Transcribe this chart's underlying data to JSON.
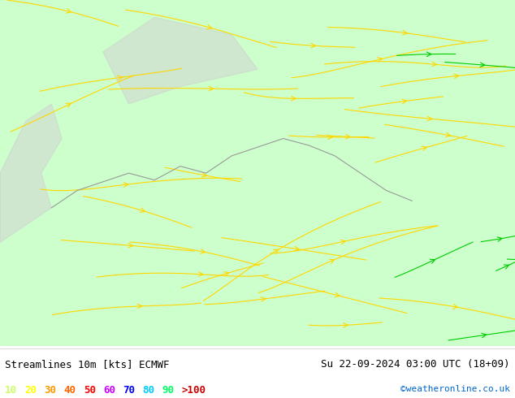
{
  "title_left": "Streamlines 10m [kts] ECMWF",
  "title_right": "Su 22-09-2024 03:00 UTC (18+09)",
  "credit": "©weatheronline.co.uk",
  "legend_values": [
    "10",
    "20",
    "30",
    "40",
    "50",
    "60",
    "70",
    "80",
    "90",
    ">100"
  ],
  "legend_colors": [
    "#ccff66",
    "#ffff00",
    "#ff9900",
    "#ff6600",
    "#ff0000",
    "#cc00ff",
    "#0000ff",
    "#00ccff",
    "#00ff66",
    "#cc0000"
  ],
  "bg_color": "#ccffcc",
  "land_color": "#ccffcc",
  "sea_color": "#ccffcc",
  "border_color": "#888888",
  "streamline_color_low": "#ffcc00",
  "streamline_color_high": "#00cc00",
  "text_color": "#000000",
  "fig_width": 6.34,
  "fig_height": 4.9,
  "dpi": 100
}
